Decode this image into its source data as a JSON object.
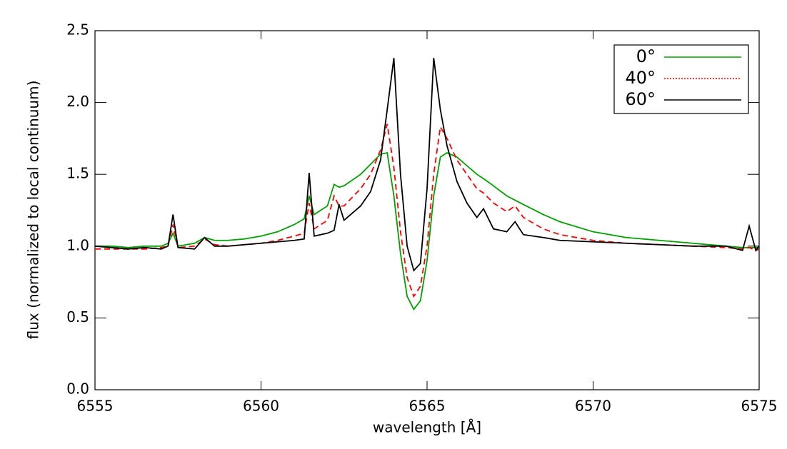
{
  "chart_data": {
    "type": "line",
    "xlabel": "wavelength [Å]",
    "ylabel": "flux (normalized to local continuum)",
    "xlim": [
      6555,
      6575
    ],
    "xticks": [
      6555,
      6560,
      6565,
      6570,
      6575
    ],
    "ylim": [
      0,
      2.5
    ],
    "yticks": [
      {
        "value": 0,
        "label": "0.0"
      },
      0.5,
      {
        "value": 1,
        "label": "1.0"
      },
      1.5,
      {
        "value": 2,
        "label": "2.0"
      },
      2.5
    ],
    "legend": "upper right",
    "x": [
      6555,
      6555.5,
      6556,
      6556.5,
      6557,
      6557.2,
      6557.35,
      6557.5,
      6558,
      6558.3,
      6558.6,
      6559,
      6559.5,
      6560,
      6560.5,
      6561,
      6561.3,
      6561.45,
      6561.6,
      6562,
      6562.2,
      6562.35,
      6562.5,
      6563,
      6563.3,
      6563.6,
      6563.8,
      6564.0,
      6564.2,
      6564.4,
      6564.6,
      6564.8,
      6565.0,
      6565.2,
      6565.4,
      6565.6,
      6565.9,
      6566.2,
      6566.5,
      6566.7,
      6567,
      6567.4,
      6567.65,
      6567.9,
      6568.5,
      6569,
      6570,
      6571,
      6572,
      6573,
      6574,
      6574.5,
      6574.7,
      6574.9,
      6575
    ],
    "series": [
      {
        "name": "0°",
        "color": "#00a000",
        "dash": false,
        "values": [
          1.0,
          1.0,
          0.99,
          1.0,
          1.0,
          1.02,
          1.09,
          1.0,
          1.02,
          1.06,
          1.04,
          1.04,
          1.05,
          1.07,
          1.1,
          1.15,
          1.19,
          1.35,
          1.22,
          1.28,
          1.43,
          1.41,
          1.42,
          1.5,
          1.57,
          1.64,
          1.65,
          1.35,
          0.95,
          0.65,
          0.56,
          0.62,
          0.9,
          1.35,
          1.62,
          1.65,
          1.62,
          1.56,
          1.5,
          1.47,
          1.42,
          1.35,
          1.32,
          1.29,
          1.22,
          1.17,
          1.1,
          1.06,
          1.04,
          1.02,
          1.0,
          0.99,
          0.99,
          0.99,
          0.99
        ]
      },
      {
        "name": "40°",
        "color": "#ff0000",
        "dash": true,
        "values": [
          0.98,
          0.98,
          0.98,
          0.98,
          0.99,
          1.0,
          1.15,
          0.99,
          1.0,
          1.05,
          1.01,
          1.0,
          1.01,
          1.02,
          1.04,
          1.07,
          1.09,
          1.3,
          1.12,
          1.18,
          1.35,
          1.28,
          1.28,
          1.4,
          1.5,
          1.67,
          1.85,
          1.55,
          1.1,
          0.78,
          0.65,
          0.72,
          1.0,
          1.5,
          1.83,
          1.75,
          1.6,
          1.5,
          1.4,
          1.37,
          1.3,
          1.24,
          1.28,
          1.2,
          1.12,
          1.08,
          1.04,
          1.02,
          1.01,
          1.0,
          0.99,
          0.98,
          0.99,
          0.97,
          0.98
        ]
      },
      {
        "name": "60°",
        "color": "#000000",
        "dash": false,
        "values": [
          1.0,
          0.99,
          0.98,
          0.99,
          0.98,
          1.0,
          1.22,
          0.99,
          0.98,
          1.06,
          1.0,
          1.0,
          1.01,
          1.02,
          1.03,
          1.04,
          1.05,
          1.51,
          1.07,
          1.09,
          1.11,
          1.29,
          1.18,
          1.28,
          1.38,
          1.6,
          1.95,
          2.31,
          1.5,
          1.0,
          0.83,
          0.88,
          1.4,
          2.31,
          1.95,
          1.7,
          1.45,
          1.3,
          1.2,
          1.26,
          1.12,
          1.1,
          1.17,
          1.08,
          1.06,
          1.04,
          1.03,
          1.02,
          1.01,
          1.0,
          1.0,
          0.97,
          1.14,
          0.97,
          1.0
        ]
      }
    ]
  }
}
